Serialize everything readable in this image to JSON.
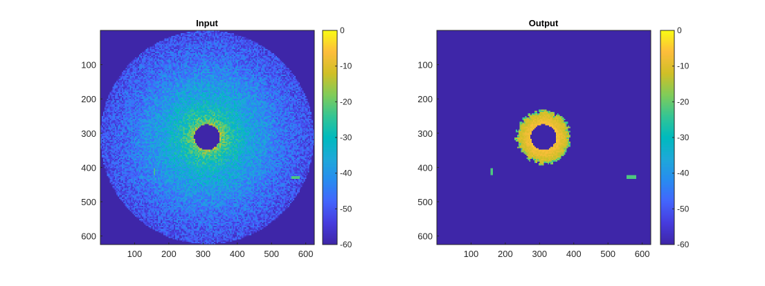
{
  "chart_data": [
    {
      "type": "heatmap",
      "title": "Input",
      "xlabel": "",
      "ylabel": "",
      "x_ticks": [
        100,
        200,
        300,
        400,
        500,
        600
      ],
      "y_ticks": [
        100,
        200,
        300,
        400,
        500,
        600
      ],
      "xlim": [
        0,
        625
      ],
      "ylim": [
        0,
        625
      ],
      "y_reversed": true,
      "colormap": "parula",
      "colorbar": {
        "range": [
          -60,
          0
        ],
        "ticks": [
          0,
          -10,
          -20,
          -30,
          -40,
          -50,
          -60
        ]
      },
      "content": {
        "disk_center": [
          312,
          312
        ],
        "disk_radius": 312,
        "hole_radius": 37,
        "inner_level": -12,
        "edge_level": -52,
        "background_level": -60,
        "artifacts": [
          {
            "x": [
              158,
              160
            ],
            "y": [
              405,
              418
            ],
            "level": -22
          },
          {
            "x": [
              562,
              580
            ],
            "y": [
              427,
              432
            ],
            "level": -22
          }
        ]
      }
    },
    {
      "type": "heatmap",
      "title": "Output",
      "xlabel": "",
      "ylabel": "",
      "x_ticks": [
        100,
        200,
        300,
        400,
        500,
        600
      ],
      "y_ticks": [
        100,
        200,
        300,
        400,
        500,
        600
      ],
      "xlim": [
        0,
        625
      ],
      "ylim": [
        0,
        625
      ],
      "y_reversed": true,
      "colormap": "parula",
      "colorbar": {
        "range": [
          -60,
          0
        ],
        "ticks": [
          0,
          -10,
          -20,
          -30,
          -40,
          -50,
          -60
        ]
      },
      "content": {
        "ring_center": [
          312,
          312
        ],
        "hole_radius": 37,
        "ring_outer_radius": 80,
        "inner_level": -6,
        "outer_level": -14,
        "background_level": -60,
        "artifacts": [
          {
            "x": [
              158,
              163
            ],
            "y": [
              403,
              418
            ],
            "level": -22
          },
          {
            "x": [
              557,
              580
            ],
            "y": [
              425,
              432
            ],
            "level": -22
          }
        ]
      }
    }
  ]
}
